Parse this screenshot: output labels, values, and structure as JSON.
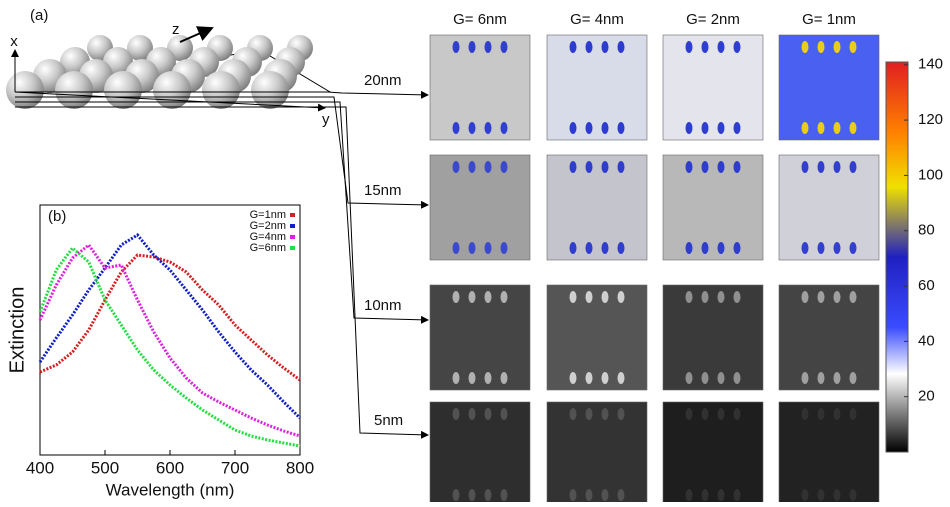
{
  "figure": {
    "panel_a": "(a)",
    "axis_x": "x",
    "axis_y": "y",
    "axis_z": "z",
    "columns": [
      "G= 6nm",
      "G= 4nm",
      "G= 2nm",
      "G= 1nm"
    ],
    "rows": [
      "20nm",
      "15nm",
      "10nm",
      "5nm"
    ]
  },
  "chart_data": [
    {
      "type": "line",
      "label": "(b)",
      "xlabel": "Wavelength (nm)",
      "ylabel": "Extinction",
      "x": [
        400,
        425,
        450,
        475,
        500,
        525,
        550,
        575,
        600,
        625,
        650,
        675,
        700,
        725,
        750,
        775,
        800
      ],
      "xlim": [
        400,
        800
      ],
      "xticks": [
        400,
        500,
        600,
        700,
        800
      ],
      "ylim": [
        0,
        100
      ],
      "legend": "upper right",
      "series": [
        {
          "name": "G=1nm",
          "color": "#d62020",
          "values": [
            33.2,
            36,
            41.2,
            50,
            62,
            73.2,
            80,
            79.2,
            77.2,
            73.2,
            66,
            60,
            52,
            46,
            40,
            34.8,
            30
          ]
        },
        {
          "name": "G=2nm",
          "color": "#1020c8",
          "values": [
            37.2,
            46.8,
            56,
            66,
            74.8,
            84,
            88,
            80,
            74,
            66,
            58,
            49.2,
            41.2,
            34,
            28,
            21.2,
            14.8
          ]
        },
        {
          "name": "G=4nm",
          "color": "#e020e0",
          "values": [
            54,
            68,
            78.8,
            84,
            74.8,
            76,
            62,
            49.2,
            38.8,
            30.8,
            24.8,
            21.2,
            18,
            14.8,
            12,
            9.6,
            7.6
          ]
        },
        {
          "name": "G=6nm",
          "color": "#20e040",
          "values": [
            57.2,
            74,
            82.8,
            77.2,
            62,
            52,
            42,
            34,
            28,
            22.8,
            18,
            14,
            10,
            7.6,
            6,
            4.8,
            3.6
          ]
        }
      ]
    },
    {
      "type": "colorbar",
      "ylim": [
        0,
        141
      ],
      "yticks": [
        20,
        40,
        60,
        80,
        100,
        120,
        140
      ]
    }
  ]
}
